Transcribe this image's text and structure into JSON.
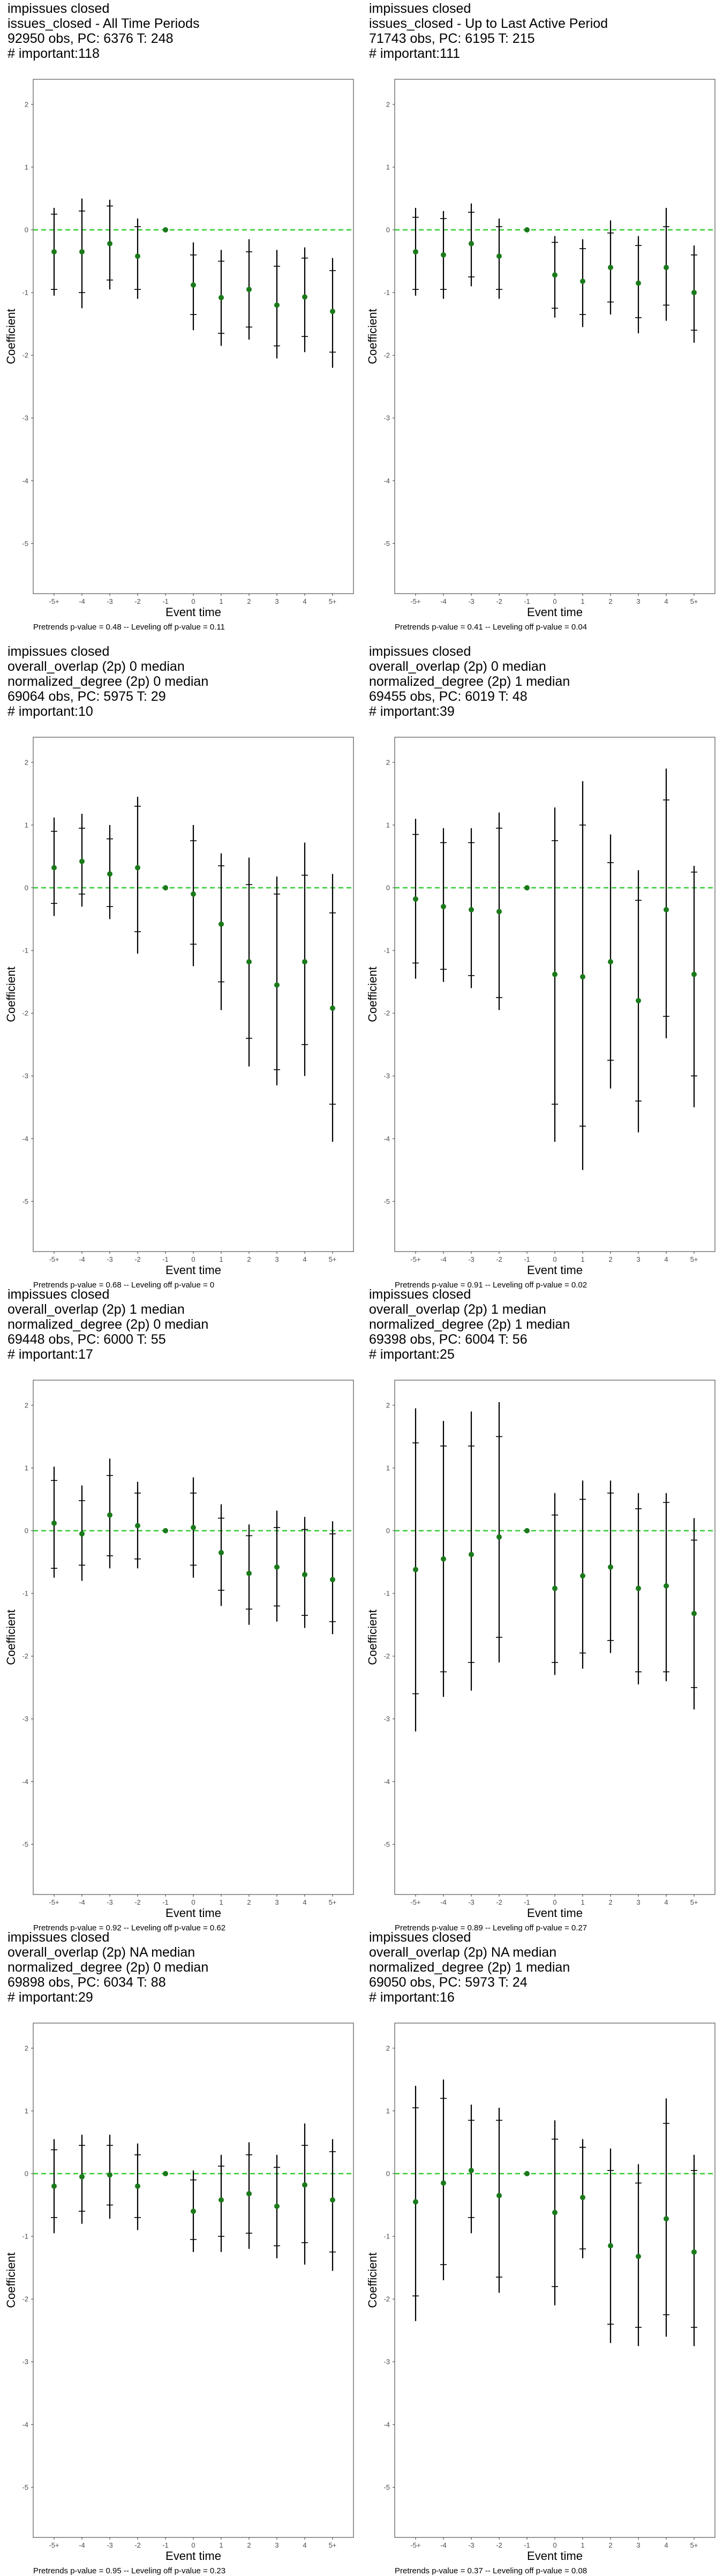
{
  "chart_data": [
    {
      "type": "scatter",
      "title_lines": [
        " impissues closed",
        "issues_closed - All Time Periods",
        "92950 obs, PC: 6376 T: 248",
        "# important:118"
      ],
      "xlabel": "Event time",
      "ylabel": "Coefficient",
      "categories": [
        "-5+",
        "-4",
        "-3",
        "-2",
        "-1",
        "0",
        "1",
        "2",
        "3",
        "4",
        "5+"
      ],
      "ylim": [
        -5.8,
        2.4
      ],
      "yticks": [
        2,
        1,
        0,
        -1,
        -2,
        -3,
        -4,
        -5
      ],
      "estimates": [
        -0.35,
        -0.35,
        -0.22,
        -0.42,
        0.0,
        -0.88,
        -1.08,
        -0.95,
        -1.2,
        -1.07,
        -1.3
      ],
      "ci_outer": [
        [
          -1.05,
          0.35
        ],
        [
          -1.25,
          0.5
        ],
        [
          -0.95,
          0.48
        ],
        [
          -1.1,
          0.18
        ],
        [
          0.0,
          0.0
        ],
        [
          -1.6,
          -0.2
        ],
        [
          -1.85,
          -0.32
        ],
        [
          -1.75,
          -0.15
        ],
        [
          -2.05,
          -0.32
        ],
        [
          -1.95,
          -0.28
        ],
        [
          -2.2,
          -0.45
        ]
      ],
      "ci_inner": [
        [
          -0.95,
          0.25
        ],
        [
          -1.0,
          0.3
        ],
        [
          -0.8,
          0.38
        ],
        [
          -0.95,
          0.05
        ],
        [
          0.0,
          0.0
        ],
        [
          -1.35,
          -0.4
        ],
        [
          -1.65,
          -0.5
        ],
        [
          -1.55,
          -0.35
        ],
        [
          -1.85,
          -0.58
        ],
        [
          -1.7,
          -0.45
        ],
        [
          -1.95,
          -0.65
        ]
      ],
      "caption": "Pretrends p-value = 0.48 -- Leveling off p-value = 0.11"
    },
    {
      "type": "scatter",
      "title_lines": [
        " impissues closed",
        "issues_closed - Up to Last Active Period",
        "71743 obs, PC: 6195 T: 215",
        "# important:111"
      ],
      "xlabel": "Event time",
      "ylabel": "Coefficient",
      "categories": [
        "-5+",
        "-4",
        "-3",
        "-2",
        "-1",
        "0",
        "1",
        "2",
        "3",
        "4",
        "5+"
      ],
      "ylim": [
        -5.8,
        2.4
      ],
      "yticks": [
        2,
        1,
        0,
        -1,
        -2,
        -3,
        -4,
        -5
      ],
      "estimates": [
        -0.35,
        -0.4,
        -0.22,
        -0.42,
        0.0,
        -0.72,
        -0.82,
        -0.6,
        -0.85,
        -0.6,
        -1.0
      ],
      "ci_outer": [
        [
          -1.05,
          0.35
        ],
        [
          -1.1,
          0.3
        ],
        [
          -0.9,
          0.42
        ],
        [
          -1.1,
          0.18
        ],
        [
          0.0,
          0.0
        ],
        [
          -1.4,
          -0.1
        ],
        [
          -1.55,
          -0.15
        ],
        [
          -1.35,
          0.15
        ],
        [
          -1.65,
          -0.1
        ],
        [
          -1.45,
          0.35
        ],
        [
          -1.8,
          -0.25
        ]
      ],
      "ci_inner": [
        [
          -0.95,
          0.2
        ],
        [
          -0.95,
          0.18
        ],
        [
          -0.75,
          0.28
        ],
        [
          -0.95,
          0.05
        ],
        [
          0.0,
          0.0
        ],
        [
          -1.25,
          -0.2
        ],
        [
          -1.35,
          -0.3
        ],
        [
          -1.15,
          -0.05
        ],
        [
          -1.4,
          -0.25
        ],
        [
          -1.2,
          0.05
        ],
        [
          -1.6,
          -0.4
        ]
      ],
      "caption": "Pretrends p-value = 0.41 -- Leveling off p-value = 0.04"
    },
    {
      "type": "scatter",
      "title_lines": [
        " impissues closed",
        "overall_overlap (2p) 0 median",
        "normalized_degree (2p) 0 median",
        "69064 obs, PC: 5975 T: 29",
        "# important:10"
      ],
      "xlabel": "Event time",
      "ylabel": "Coefficient",
      "categories": [
        "-5+",
        "-4",
        "-3",
        "-2",
        "-1",
        "0",
        "1",
        "2",
        "3",
        "4",
        "5+"
      ],
      "ylim": [
        -5.8,
        2.4
      ],
      "yticks": [
        2,
        1,
        0,
        -1,
        -2,
        -3,
        -4,
        -5
      ],
      "estimates": [
        0.32,
        0.42,
        0.22,
        0.32,
        0.0,
        -0.1,
        -0.58,
        -1.18,
        -1.55,
        -1.18,
        -1.92
      ],
      "ci_outer": [
        [
          -0.45,
          1.12
        ],
        [
          -0.3,
          1.18
        ],
        [
          -0.5,
          1.0
        ],
        [
          -1.05,
          1.45
        ],
        [
          0.0,
          0.0
        ],
        [
          -1.25,
          1.0
        ],
        [
          -1.95,
          0.55
        ],
        [
          -2.85,
          0.48
        ],
        [
          -3.15,
          0.18
        ],
        [
          -3.0,
          0.72
        ],
        [
          -4.05,
          0.22
        ]
      ],
      "ci_inner": [
        [
          -0.25,
          0.9
        ],
        [
          -0.1,
          0.95
        ],
        [
          -0.3,
          0.78
        ],
        [
          -0.7,
          1.3
        ],
        [
          0.0,
          0.0
        ],
        [
          -0.9,
          0.75
        ],
        [
          -1.5,
          0.35
        ],
        [
          -2.4,
          0.05
        ],
        [
          -2.9,
          -0.1
        ],
        [
          -2.5,
          0.2
        ],
        [
          -3.45,
          -0.4
        ]
      ],
      "caption": "Pretrends p-value = 0.68 -- Leveling off p-value = 0"
    },
    {
      "type": "scatter",
      "title_lines": [
        " impissues closed",
        "overall_overlap (2p) 0 median",
        "normalized_degree (2p) 1 median",
        "69455 obs, PC: 6019 T: 48",
        "# important:39"
      ],
      "xlabel": "Event time",
      "ylabel": "Coefficient",
      "categories": [
        "-5+",
        "-4",
        "-3",
        "-2",
        "-1",
        "0",
        "1",
        "2",
        "3",
        "4",
        "5+"
      ],
      "ylim": [
        -5.8,
        2.4
      ],
      "yticks": [
        2,
        1,
        0,
        -1,
        -2,
        -3,
        -4,
        -5
      ],
      "estimates": [
        -0.18,
        -0.3,
        -0.35,
        -0.38,
        0.0,
        -1.38,
        -1.42,
        -1.18,
        -1.8,
        -0.35,
        -1.38
      ],
      "ci_outer": [
        [
          -1.45,
          1.1
        ],
        [
          -1.5,
          0.95
        ],
        [
          -1.6,
          0.95
        ],
        [
          -1.95,
          1.2
        ],
        [
          0.0,
          0.0
        ],
        [
          -4.05,
          1.28
        ],
        [
          -4.5,
          1.7
        ],
        [
          -3.2,
          0.85
        ],
        [
          -3.9,
          0.28
        ],
        [
          -2.4,
          1.9
        ],
        [
          -3.5,
          0.35
        ]
      ],
      "ci_inner": [
        [
          -1.2,
          0.85
        ],
        [
          -1.3,
          0.72
        ],
        [
          -1.4,
          0.72
        ],
        [
          -1.75,
          0.95
        ],
        [
          0.0,
          0.0
        ],
        [
          -3.45,
          0.75
        ],
        [
          -3.8,
          1.0
        ],
        [
          -2.75,
          0.4
        ],
        [
          -3.4,
          -0.2
        ],
        [
          -2.05,
          1.4
        ],
        [
          -3.0,
          0.25
        ]
      ],
      "caption": "Pretrends p-value = 0.91 -- Leveling off p-value = 0.02"
    },
    {
      "type": "scatter",
      "title_lines": [
        " impissues closed",
        "overall_overlap (2p) 1 median",
        "normalized_degree (2p) 0 median",
        "69448 obs, PC: 6000 T: 55",
        "# important:17"
      ],
      "xlabel": "Event time",
      "ylabel": "Coefficient",
      "categories": [
        "-5+",
        "-4",
        "-3",
        "-2",
        "-1",
        "0",
        "1",
        "2",
        "3",
        "4",
        "5+"
      ],
      "ylim": [
        -5.8,
        2.4
      ],
      "yticks": [
        2,
        1,
        0,
        -1,
        -2,
        -3,
        -4,
        -5
      ],
      "estimates": [
        0.12,
        -0.05,
        0.25,
        0.08,
        0.0,
        0.05,
        -0.35,
        -0.68,
        -0.58,
        -0.7,
        -0.78
      ],
      "ci_outer": [
        [
          -0.75,
          1.02
        ],
        [
          -0.8,
          0.72
        ],
        [
          -0.6,
          1.15
        ],
        [
          -0.6,
          0.78
        ],
        [
          0.0,
          0.0
        ],
        [
          -0.75,
          0.85
        ],
        [
          -1.2,
          0.42
        ],
        [
          -1.5,
          0.1
        ],
        [
          -1.45,
          0.32
        ],
        [
          -1.55,
          0.22
        ],
        [
          -1.65,
          0.15
        ]
      ],
      "ci_inner": [
        [
          -0.6,
          0.8
        ],
        [
          -0.55,
          0.48
        ],
        [
          -0.4,
          0.88
        ],
        [
          -0.45,
          0.6
        ],
        [
          0.0,
          0.0
        ],
        [
          -0.55,
          0.6
        ],
        [
          -0.95,
          0.2
        ],
        [
          -1.25,
          -0.08
        ],
        [
          -1.2,
          0.05
        ],
        [
          -1.35,
          0.02
        ],
        [
          -1.45,
          -0.05
        ]
      ],
      "caption": "Pretrends p-value = 0.92 -- Leveling off p-value = 0.62"
    },
    {
      "type": "scatter",
      "title_lines": [
        " impissues closed",
        "overall_overlap (2p) 1 median",
        "normalized_degree (2p) 1 median",
        "69398 obs, PC: 6004 T: 56",
        "# important:25"
      ],
      "xlabel": "Event time",
      "ylabel": "Coefficient",
      "categories": [
        "-5+",
        "-4",
        "-3",
        "-2",
        "-1",
        "0",
        "1",
        "2",
        "3",
        "4",
        "5+"
      ],
      "ylim": [
        -5.8,
        2.4
      ],
      "yticks": [
        2,
        1,
        0,
        -1,
        -2,
        -3,
        -4,
        -5
      ],
      "estimates": [
        -0.62,
        -0.45,
        -0.38,
        -0.1,
        0.0,
        -0.92,
        -0.72,
        -0.58,
        -0.92,
        -0.88,
        -1.32
      ],
      "ci_outer": [
        [
          -3.2,
          1.95
        ],
        [
          -2.65,
          1.75
        ],
        [
          -2.55,
          1.9
        ],
        [
          -2.1,
          2.05
        ],
        [
          0.0,
          0.0
        ],
        [
          -2.3,
          0.6
        ],
        [
          -2.2,
          0.8
        ],
        [
          -1.95,
          0.8
        ],
        [
          -2.45,
          0.6
        ],
        [
          -2.4,
          0.6
        ],
        [
          -2.85,
          0.2
        ]
      ],
      "ci_inner": [
        [
          -2.6,
          1.4
        ],
        [
          -2.25,
          1.35
        ],
        [
          -2.1,
          1.35
        ],
        [
          -1.7,
          1.5
        ],
        [
          0.0,
          0.0
        ],
        [
          -2.1,
          0.25
        ],
        [
          -1.95,
          0.5
        ],
        [
          -1.75,
          0.6
        ],
        [
          -2.25,
          0.35
        ],
        [
          -2.25,
          0.45
        ],
        [
          -2.5,
          -0.15
        ]
      ],
      "caption": "Pretrends p-value = 0.89 -- Leveling off p-value = 0.27"
    },
    {
      "type": "scatter",
      "title_lines": [
        " impissues closed",
        "overall_overlap (2p) NA median",
        "normalized_degree (2p) 0 median",
        "69898 obs, PC: 6034 T: 88",
        "# important:29"
      ],
      "xlabel": "Event time",
      "ylabel": "Coefficient",
      "categories": [
        "-5+",
        "-4",
        "-3",
        "-2",
        "-1",
        "0",
        "1",
        "2",
        "3",
        "4",
        "5+"
      ],
      "ylim": [
        -5.8,
        2.4
      ],
      "yticks": [
        2,
        1,
        0,
        -1,
        -2,
        -3,
        -4,
        -5
      ],
      "estimates": [
        -0.2,
        -0.05,
        -0.02,
        -0.2,
        0.0,
        -0.6,
        -0.42,
        -0.32,
        -0.52,
        -0.18,
        -0.42
      ],
      "ci_outer": [
        [
          -0.95,
          0.55
        ],
        [
          -0.8,
          0.62
        ],
        [
          -0.72,
          0.62
        ],
        [
          -0.9,
          0.48
        ],
        [
          0.0,
          0.0
        ],
        [
          -1.25,
          0.05
        ],
        [
          -1.25,
          0.3
        ],
        [
          -1.2,
          0.5
        ],
        [
          -1.35,
          0.3
        ],
        [
          -1.45,
          0.8
        ],
        [
          -1.55,
          0.55
        ]
      ],
      "ci_inner": [
        [
          -0.7,
          0.38
        ],
        [
          -0.6,
          0.45
        ],
        [
          -0.5,
          0.45
        ],
        [
          -0.7,
          0.3
        ],
        [
          0.0,
          0.0
        ],
        [
          -1.05,
          -0.1
        ],
        [
          -1.0,
          0.12
        ],
        [
          -0.95,
          0.3
        ],
        [
          -1.15,
          0.1
        ],
        [
          -1.1,
          0.45
        ],
        [
          -1.25,
          0.35
        ]
      ],
      "caption": "Pretrends p-value = 0.95 -- Leveling off p-value = 0.23"
    },
    {
      "type": "scatter",
      "title_lines": [
        " impissues closed",
        "overall_overlap (2p) NA median",
        "normalized_degree (2p) 1 median",
        "69050 obs, PC: 5973 T: 24",
        "# important:16"
      ],
      "xlabel": "Event time",
      "ylabel": "Coefficient",
      "categories": [
        "-5+",
        "-4",
        "-3",
        "-2",
        "-1",
        "0",
        "1",
        "2",
        "3",
        "4",
        "5+"
      ],
      "ylim": [
        -5.8,
        2.4
      ],
      "yticks": [
        2,
        1,
        0,
        -1,
        -2,
        -3,
        -4,
        -5
      ],
      "estimates": [
        -0.45,
        -0.15,
        0.05,
        -0.35,
        0.0,
        -0.62,
        -0.38,
        -1.15,
        -1.32,
        -0.72,
        -1.25
      ],
      "ci_outer": [
        [
          -2.35,
          1.4
        ],
        [
          -1.7,
          1.5
        ],
        [
          -0.95,
          1.1
        ],
        [
          -1.9,
          1.05
        ],
        [
          0.0,
          0.0
        ],
        [
          -2.1,
          0.85
        ],
        [
          -1.35,
          0.55
        ],
        [
          -2.7,
          0.4
        ],
        [
          -2.75,
          0.15
        ],
        [
          -2.6,
          1.2
        ],
        [
          -2.75,
          0.3
        ]
      ],
      "ci_inner": [
        [
          -1.95,
          1.05
        ],
        [
          -1.45,
          1.2
        ],
        [
          -0.7,
          0.85
        ],
        [
          -1.65,
          0.85
        ],
        [
          0.0,
          0.0
        ],
        [
          -1.8,
          0.55
        ],
        [
          -1.2,
          0.42
        ],
        [
          -2.4,
          0.05
        ],
        [
          -2.45,
          -0.15
        ],
        [
          -2.25,
          0.8
        ],
        [
          -2.45,
          0.05
        ]
      ],
      "caption": "Pretrends p-value = 0.37 -- Leveling off p-value = 0.08"
    }
  ],
  "colors": {
    "point": "#1a7a1a",
    "zero_line": "#33cc33",
    "error_bar": "#000000",
    "panel_border": "#333333"
  }
}
